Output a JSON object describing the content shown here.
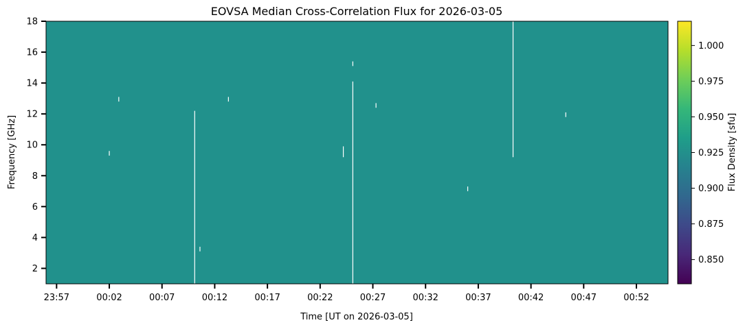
{
  "chart_data": {
    "type": "heatmap",
    "title": "EOVSA Median Cross-Correlation Flux for 2026-03-05",
    "xlabel": "Time [UT on 2026-03-05]",
    "ylabel": "Frequency [GHz]",
    "x_unit": "minutes relative to 00:00 UT",
    "xlim": [
      -4,
      55
    ],
    "ylim": [
      1,
      18
    ],
    "x_ticks": [
      {
        "value": -3,
        "label": "23:57"
      },
      {
        "value": 2,
        "label": "00:02"
      },
      {
        "value": 7,
        "label": "00:07"
      },
      {
        "value": 12,
        "label": "00:12"
      },
      {
        "value": 17,
        "label": "00:17"
      },
      {
        "value": 22,
        "label": "00:22"
      },
      {
        "value": 27,
        "label": "00:27"
      },
      {
        "value": 32,
        "label": "00:32"
      },
      {
        "value": 37,
        "label": "00:37"
      },
      {
        "value": 42,
        "label": "00:42"
      },
      {
        "value": 47,
        "label": "00:47"
      },
      {
        "value": 52,
        "label": "00:52"
      }
    ],
    "y_ticks": [
      {
        "value": 2,
        "label": "2"
      },
      {
        "value": 4,
        "label": "4"
      },
      {
        "value": 6,
        "label": "6"
      },
      {
        "value": 8,
        "label": "8"
      },
      {
        "value": 10,
        "label": "10"
      },
      {
        "value": 12,
        "label": "12"
      },
      {
        "value": 14,
        "label": "14"
      },
      {
        "value": 16,
        "label": "16"
      },
      {
        "value": 18,
        "label": "18"
      }
    ],
    "fill_value": 0.925,
    "fill_color": "#21918c",
    "missing_color": "#ffffff",
    "gaps": [
      {
        "t": 2.0,
        "f0": 9.3,
        "f1": 9.6
      },
      {
        "t": 2.9,
        "f0": 12.8,
        "f1": 13.1
      },
      {
        "t": 10.1,
        "f0": 1.0,
        "f1": 12.2
      },
      {
        "t": 10.6,
        "f0": 3.1,
        "f1": 3.4
      },
      {
        "t": 13.3,
        "f0": 12.8,
        "f1": 13.1
      },
      {
        "t": 24.2,
        "f0": 9.2,
        "f1": 9.9
      },
      {
        "t": 25.1,
        "f0": 1.0,
        "f1": 14.1
      },
      {
        "t": 25.1,
        "f0": 15.1,
        "f1": 15.4
      },
      {
        "t": 27.3,
        "f0": 12.4,
        "f1": 12.7
      },
      {
        "t": 36.0,
        "f0": 7.0,
        "f1": 7.3
      },
      {
        "t": 40.3,
        "f0": 9.2,
        "f1": 18.0
      },
      {
        "t": 45.3,
        "f0": 11.8,
        "f1": 12.1
      }
    ],
    "colorbar": {
      "label": "Flux Density [sfu]",
      "colormap": "viridis",
      "vmin": 0.833,
      "vmax": 1.017,
      "ticks": [
        {
          "value": 0.85,
          "label": "0.850"
        },
        {
          "value": 0.875,
          "label": "0.875"
        },
        {
          "value": 0.9,
          "label": "0.900"
        },
        {
          "value": 0.925,
          "label": "0.925"
        },
        {
          "value": 0.95,
          "label": "0.950"
        },
        {
          "value": 0.975,
          "label": "0.975"
        },
        {
          "value": 1.0,
          "label": "1.000"
        }
      ],
      "colors": [
        "#440154",
        "#482878",
        "#3e4989",
        "#31688e",
        "#26828e",
        "#1f9e89",
        "#35b779",
        "#6ece58",
        "#b5de2b",
        "#fde725"
      ]
    }
  }
}
